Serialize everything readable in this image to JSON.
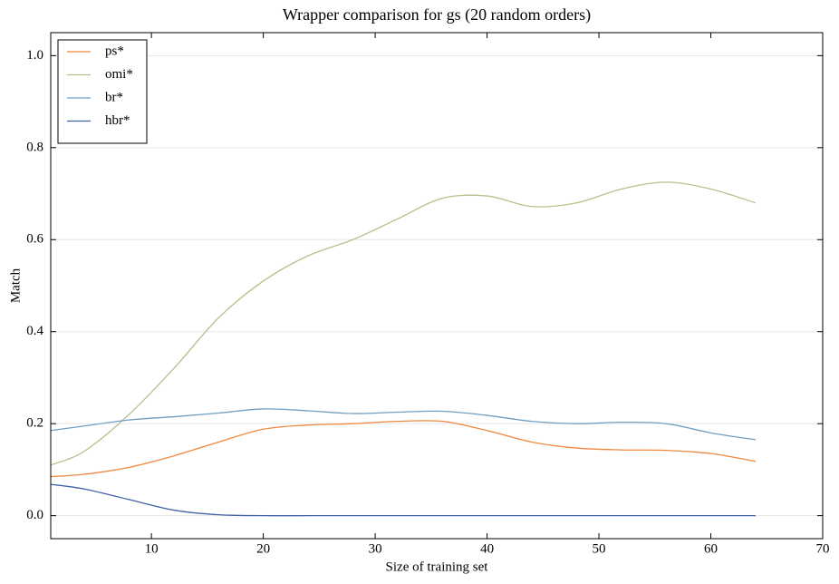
{
  "chart_data": {
    "type": "line",
    "title": "Wrapper comparison for gs (20 random orders)",
    "x_label": "Size of training set",
    "y_label": "Match",
    "x": [
      1,
      4,
      8,
      12,
      16,
      20,
      24,
      28,
      32,
      36,
      40,
      44,
      48,
      52,
      56,
      60,
      64
    ],
    "series": [
      {
        "name": "ps*",
        "color": "#f0883e",
        "values": [
          0.085,
          0.09,
          0.105,
          0.13,
          0.16,
          0.188,
          0.197,
          0.2,
          0.205,
          0.205,
          0.185,
          0.16,
          0.147,
          0.143,
          0.142,
          0.135,
          0.118
        ]
      },
      {
        "name": "omi*",
        "color": "#b5c18c",
        "values": [
          0.11,
          0.14,
          0.22,
          0.32,
          0.43,
          0.51,
          0.565,
          0.6,
          0.645,
          0.69,
          0.695,
          0.672,
          0.68,
          0.71,
          0.725,
          0.71,
          0.68
        ]
      },
      {
        "name": "br*",
        "color": "#6f9fc3",
        "values": [
          0.185,
          0.195,
          0.208,
          0.215,
          0.223,
          0.232,
          0.228,
          0.222,
          0.225,
          0.227,
          0.218,
          0.205,
          0.2,
          0.203,
          0.2,
          0.18,
          0.165
        ]
      },
      {
        "name": "hbr*",
        "color": "#4062a8",
        "values": [
          0.068,
          0.058,
          0.035,
          0.012,
          0.002,
          0,
          0,
          0,
          0,
          0,
          0,
          0,
          0,
          0,
          0,
          0,
          0
        ]
      }
    ],
    "xlim": [
      1,
      70
    ],
    "xticks": [
      10,
      20,
      30,
      40,
      50,
      60,
      70
    ],
    "ylim": [
      -0.05,
      1.05
    ],
    "yticks": [
      {
        "value": 0,
        "label": "0.0"
      },
      {
        "value": 0.2,
        "label": "0.2"
      },
      {
        "value": 0.4,
        "label": "0.4"
      },
      {
        "value": 0.6,
        "label": "0.6"
      },
      {
        "value": 0.8,
        "label": "0.8"
      },
      {
        "value": 1,
        "label": "1.0"
      }
    ],
    "grid": true,
    "legend": "upper left"
  }
}
